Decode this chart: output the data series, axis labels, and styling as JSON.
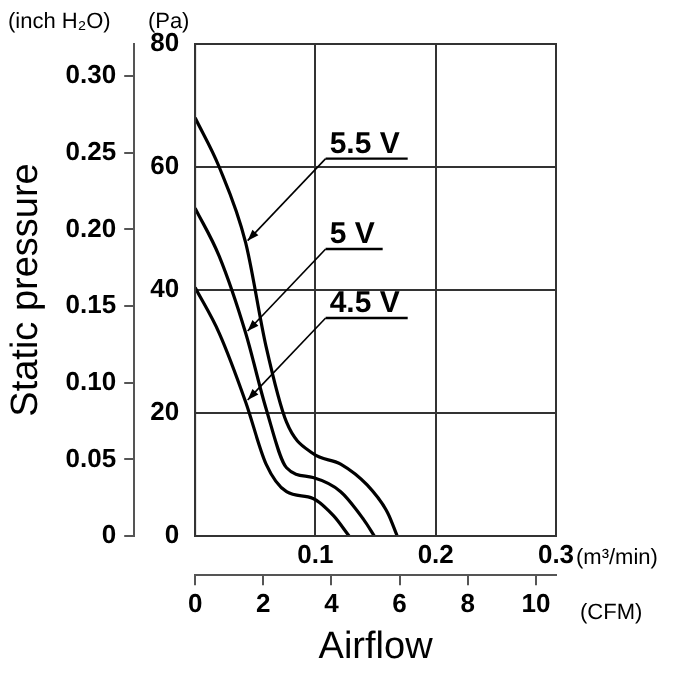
{
  "chart_data": {
    "type": "line",
    "xlabel": "Airflow",
    "y2label": "Static pressure",
    "annotations": [
      "(inch H₂O)",
      "(Pa)",
      "(m³/min)",
      "(CFM)"
    ],
    "xlim": [
      0,
      0.3
    ],
    "xticks": [
      {
        "value": 0,
        "label": null
      },
      0.1,
      0.2,
      0.3
    ],
    "ylim": [
      0,
      80
    ],
    "yticks": [
      0,
      20,
      40,
      60,
      80
    ],
    "y2lim": [
      0,
      0.321
    ],
    "y2ticks": [
      0,
      {
        "value": 0.05,
        "label": "0.05"
      },
      {
        "value": 0.1,
        "label": "0.10"
      },
      {
        "value": 0.15,
        "label": "0.15"
      },
      {
        "value": 0.2,
        "label": "0.20"
      },
      {
        "value": 0.25,
        "label": "0.25"
      },
      {
        "value": 0.3,
        "label": "0.30"
      }
    ],
    "x2lim": [
      0,
      10.59
    ],
    "x2ticks": [
      0,
      2,
      4,
      6,
      8,
      10
    ],
    "grid": true,
    "legend": "left",
    "marker": "none",
    "line_style": "solid",
    "series": [
      {
        "name": "5.5 V",
        "color": "#000000",
        "x": [
          0,
          0.02,
          0.042,
          0.059,
          0.076,
          0.098,
          0.121,
          0.143,
          0.16,
          0.168
        ],
        "values": [
          68,
          60,
          47.7,
          30.8,
          18.5,
          13.4,
          11.7,
          8.3,
          3.8,
          0
        ]
      },
      {
        "name": "5 V",
        "color": "#000000",
        "x": [
          0,
          0.02,
          0.042,
          0.059,
          0.076,
          0.098,
          0.121,
          0.14,
          0.149
        ],
        "values": [
          53.3,
          45.5,
          33,
          20.7,
          11.1,
          9.5,
          7.2,
          2.7,
          0
        ]
      },
      {
        "name": "4.5 V",
        "color": "#000000",
        "x": [
          0,
          0.02,
          0.042,
          0.059,
          0.076,
          0.098,
          0.115,
          0.128
        ],
        "values": [
          40.4,
          33,
          21.8,
          11.7,
          7.2,
          6.1,
          3.3,
          0
        ]
      }
    ]
  }
}
